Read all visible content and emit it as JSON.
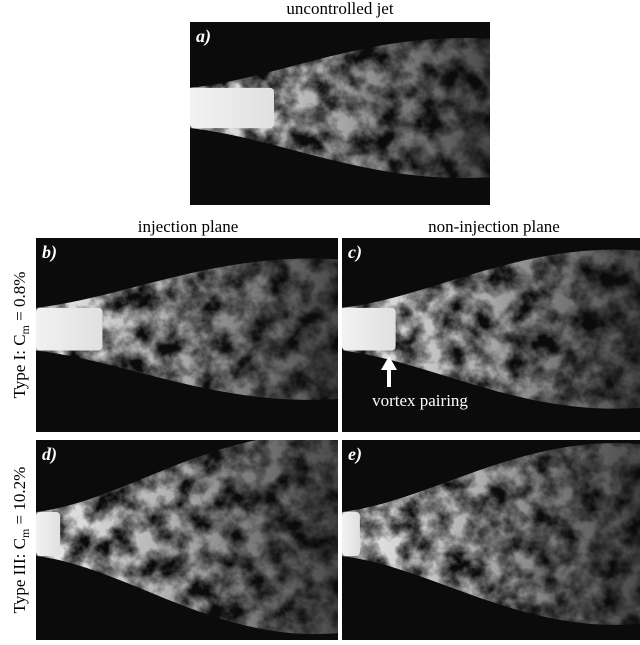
{
  "panels": [
    {
      "label": "a)",
      "title": "uncontrolled jet"
    },
    {
      "label": "b)"
    },
    {
      "label": "c)"
    },
    {
      "label": "d)"
    },
    {
      "label": "e)"
    }
  ],
  "column_titles": [
    "injection plane",
    "non-injection plane"
  ],
  "row_titles": [
    {
      "prefix": "Type I: C",
      "subscript": "m",
      "suffix": " = 0.8%"
    },
    {
      "prefix": "Type III: C",
      "subscript": "m",
      "suffix": " = 10.2%"
    }
  ],
  "annotation": "vortex pairing"
}
